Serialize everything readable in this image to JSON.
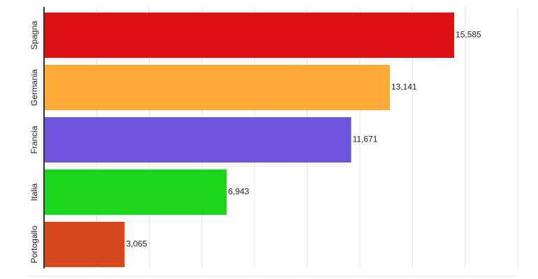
{
  "chart_data": {
    "type": "bar",
    "orientation": "horizontal",
    "categories": [
      "Spagna",
      "Germania",
      "Francia",
      "Italia",
      "Portogallo"
    ],
    "values": [
      15585,
      13141,
      11671,
      6943,
      3065
    ],
    "value_labels": [
      "15,585",
      "13,141",
      "11,671",
      "6,943",
      "3,065"
    ],
    "colors": [
      "#dc1111",
      "#fdaa3a",
      "#6f55dd",
      "#1ad61a",
      "#d5481d"
    ],
    "xlim": [
      0,
      18000
    ],
    "xticks": [
      0,
      2000,
      4000,
      6000,
      8000,
      10000,
      12000,
      14000,
      16000,
      18000
    ],
    "grid": true
  }
}
